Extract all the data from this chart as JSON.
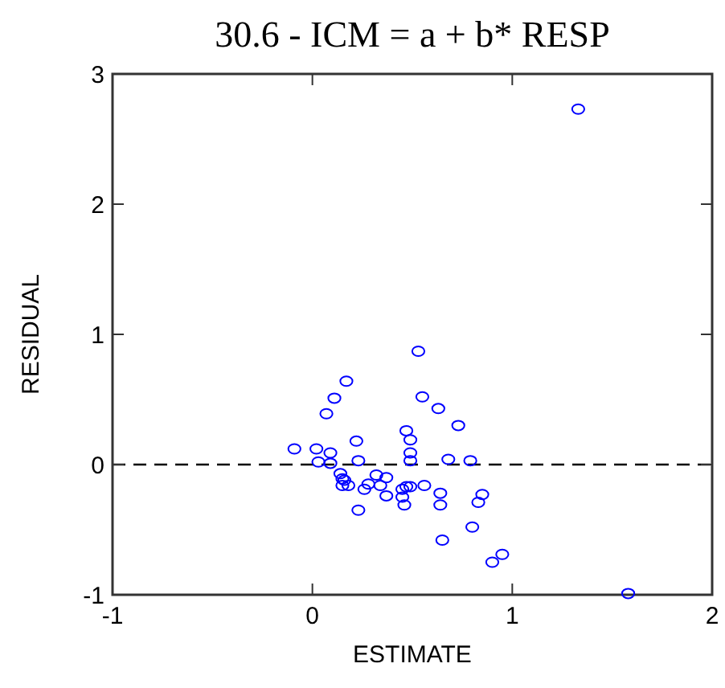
{
  "chart_data": {
    "type": "scatter",
    "title": "30.6 - ICM = a + b* RESP",
    "xlabel": "ESTIMATE",
    "ylabel": "RESIDUAL",
    "xlim": [
      -1,
      2
    ],
    "xticks": [
      -1,
      0,
      1,
      2
    ],
    "ylim": [
      -1,
      3
    ],
    "yticks": [
      -1,
      0,
      1,
      2,
      3
    ],
    "grid": false,
    "marker": "circle",
    "ref_lines": [
      {
        "axis": "y",
        "value": 0,
        "line_style": "dashed",
        "color": "#000000"
      }
    ],
    "series": [
      {
        "color": "#0000ff",
        "x": [
          -0.09,
          0.02,
          0.03,
          0.09,
          0.09,
          0.07,
          0.11,
          0.17,
          0.14,
          0.15,
          0.15,
          0.16,
          0.18,
          0.22,
          0.23,
          0.23,
          0.26,
          0.28,
          0.32,
          0.34,
          0.37,
          0.37,
          0.45,
          0.45,
          0.46,
          0.47,
          0.49,
          0.47,
          0.49,
          0.49,
          0.49,
          0.53,
          0.55,
          0.56,
          0.63,
          0.64,
          0.64,
          0.65,
          0.68,
          0.73,
          0.79,
          0.8,
          0.83,
          0.85,
          0.9,
          0.95,
          1.33,
          1.58
        ],
        "values": [
          0.12,
          0.12,
          0.02,
          0.09,
          0.01,
          0.39,
          0.51,
          0.64,
          -0.07,
          -0.11,
          -0.16,
          -0.12,
          -0.16,
          0.18,
          0.03,
          -0.35,
          -0.19,
          -0.15,
          -0.08,
          -0.16,
          -0.1,
          -0.24,
          -0.19,
          -0.25,
          -0.31,
          -0.17,
          -0.17,
          0.26,
          0.19,
          0.09,
          0.03,
          0.87,
          0.52,
          -0.16,
          0.43,
          -0.22,
          -0.31,
          -0.58,
          0.04,
          0.3,
          0.03,
          -0.48,
          -0.29,
          -0.23,
          -0.75,
          -0.69,
          2.73,
          -0.99
        ]
      }
    ]
  }
}
